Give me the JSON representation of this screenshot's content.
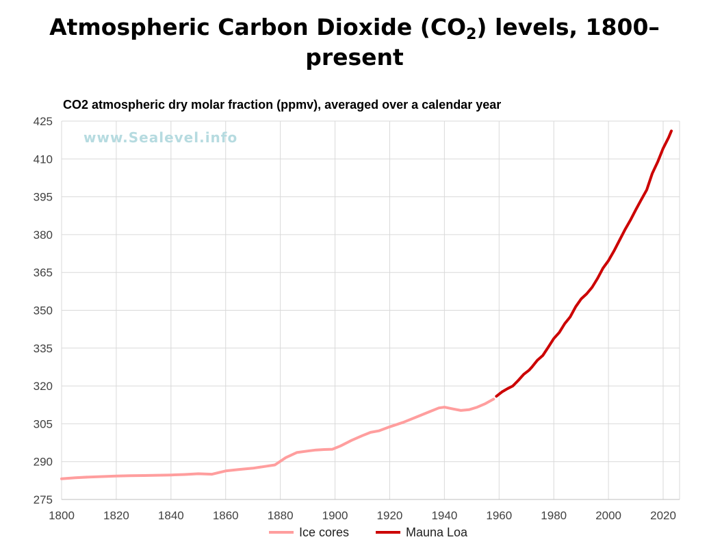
{
  "title": {
    "line1_pre": "Atmospheric Carbon Dioxide (CO",
    "sub": "2",
    "line1_post": ") levels, 1800–",
    "line2": "present"
  },
  "chart_data": {
    "type": "line",
    "subtitle": "CO2 atmospheric dry molar fraction (ppmv), averaged over a calendar year",
    "watermark": "www.Sealevel.info",
    "xlim": [
      1800,
      2026
    ],
    "ylim": [
      275,
      425
    ],
    "xticks": [
      "1800",
      "1820",
      "1840",
      "1860",
      "1880",
      "1900",
      "1920",
      "1940",
      "1960",
      "1980",
      "2000",
      "2020"
    ],
    "yticks": [
      "425",
      "410",
      "395",
      "380",
      "365",
      "350",
      "335",
      "320",
      "305",
      "290",
      "275"
    ],
    "grid": true,
    "legend": "bottom",
    "series": [
      {
        "name": "Ice cores",
        "color": "#ff9e9e",
        "x": [
          1800,
          1805,
          1810,
          1815,
          1820,
          1825,
          1830,
          1835,
          1840,
          1845,
          1850,
          1855,
          1860,
          1865,
          1870,
          1875,
          1878,
          1882,
          1886,
          1890,
          1893,
          1896,
          1899,
          1902,
          1906,
          1910,
          1913,
          1916,
          1920,
          1925,
          1930,
          1935,
          1938,
          1940,
          1943,
          1946,
          1949,
          1952,
          1955,
          1958
        ],
        "y": [
          283.2,
          283.6,
          283.9,
          284.1,
          284.3,
          284.4,
          284.5,
          284.6,
          284.7,
          284.9,
          285.2,
          285.0,
          286.3,
          286.9,
          287.4,
          288.2,
          288.7,
          291.6,
          293.6,
          294.2,
          294.6,
          294.8,
          294.9,
          296.2,
          298.4,
          300.3,
          301.6,
          302.2,
          303.8,
          305.6,
          307.8,
          310.0,
          311.3,
          311.6,
          310.9,
          310.3,
          310.6,
          311.6,
          313.0,
          314.8
        ]
      },
      {
        "name": "Mauna Loa",
        "color": "#cc0000",
        "x": [
          1959,
          1961,
          1963,
          1965,
          1967,
          1969,
          1971,
          1972,
          1974,
          1976,
          1978,
          1980,
          1982,
          1984,
          1986,
          1988,
          1990,
          1992,
          1994,
          1996,
          1998,
          2000,
          2002,
          2004,
          2006,
          2008,
          2010,
          2012,
          2014,
          2016,
          2018,
          2020,
          2022,
          2023
        ],
        "y": [
          315.9,
          317.6,
          318.9,
          320.0,
          322.2,
          324.6,
          326.3,
          327.5,
          330.2,
          332.1,
          335.4,
          338.8,
          341.2,
          344.7,
          347.4,
          351.4,
          354.5,
          356.5,
          359.1,
          362.6,
          366.7,
          369.7,
          373.5,
          377.7,
          381.9,
          385.7,
          389.9,
          393.9,
          397.8,
          404.2,
          408.8,
          414.2,
          418.5,
          421.1
        ]
      }
    ]
  }
}
